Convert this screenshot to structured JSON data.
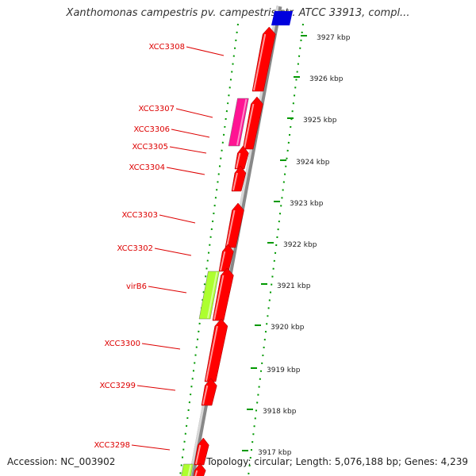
{
  "title": "Xanthomonas campestris pv. campestris str. ATCC 33913, compl...",
  "scale_labels": [
    "3927 kbp",
    "3926 kbp",
    "3925 kbp",
    "3924 kbp",
    "3923 kbp",
    "3922 kbp",
    "3921 kbp",
    "3920 kbp",
    "3919 kbp",
    "3918 kbp",
    "3917 kbp"
  ],
  "genes": [
    {
      "label": "XCC3308",
      "color": "#ff0000"
    },
    {
      "label": "XCC3307",
      "color": "#ff1493"
    },
    {
      "label": "XCC3306",
      "color": "#ff0000"
    },
    {
      "label": "XCC3305",
      "color": "#ff0000"
    },
    {
      "label": "XCC3304",
      "color": "#ff0000"
    },
    {
      "label": "XCC3303",
      "color": "#ff0000"
    },
    {
      "label": "XCC3302",
      "color": "#ff0000"
    },
    {
      "label": "virB6",
      "color": "#adff2f"
    },
    {
      "label": "XCC3300",
      "color": "#ff0000"
    },
    {
      "label": "XCC3299",
      "color": "#ff0000"
    },
    {
      "label": "XCC3298",
      "color": "#ff0000"
    }
  ],
  "footer": {
    "accession": "Accession: NC_003902",
    "info": "Topology: circular; Length: 5,076,188 bp; Genes: 4,239"
  }
}
